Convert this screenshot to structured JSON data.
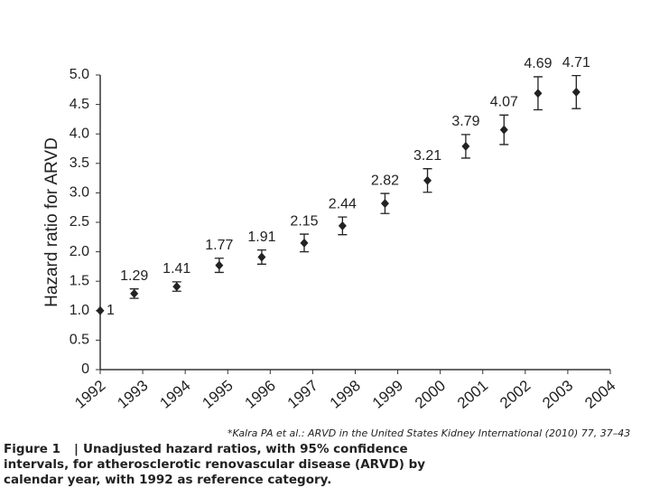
{
  "chart_data": {
    "type": "scatter",
    "y_label": "Hazard ratio for ARVD",
    "x": [
      1992,
      1992.8,
      1993.8,
      1994.8,
      1995.8,
      1996.8,
      1997.7,
      1998.7,
      1999.7,
      2000.6,
      2001.5,
      2002.3,
      2003.2
    ],
    "values": [
      1,
      1.29,
      1.41,
      1.77,
      1.91,
      2.15,
      2.44,
      2.82,
      3.21,
      3.79,
      4.07,
      4.69,
      4.71
    ],
    "errors": [
      null,
      0.08,
      0.08,
      0.12,
      0.12,
      0.15,
      0.15,
      0.17,
      0.2,
      0.2,
      0.25,
      0.28,
      0.28
    ],
    "color": "#222222",
    "xlim": [
      1992,
      2004
    ],
    "xticks": [
      1992,
      1993,
      1994,
      1995,
      1996,
      1997,
      1998,
      1999,
      2000,
      2001,
      2002,
      2003,
      2004
    ],
    "ylim": [
      0,
      5
    ],
    "yticks": [
      0,
      0.5,
      {
        "value": 1,
        "label": "1.0"
      },
      1.5,
      {
        "value": 2,
        "label": "2.0"
      },
      2.5,
      {
        "value": 3,
        "label": "3.0"
      },
      3.5,
      {
        "value": 4,
        "label": "4.0"
      },
      4.5,
      {
        "value": 5,
        "label": "5.0"
      }
    ],
    "grid": false
  },
  "citation": "*Kalra PA et al.: ARVD in the United States Kidney International (2010) 77, 37–43",
  "caption": {
    "label": "Figure 1",
    "lines": [
      "Unadjusted hazard ratios, with 95% confidence",
      "intervals, for atherosclerotic renovascular disease (ARVD) by",
      "calendar year, with 1992 as reference category."
    ]
  }
}
